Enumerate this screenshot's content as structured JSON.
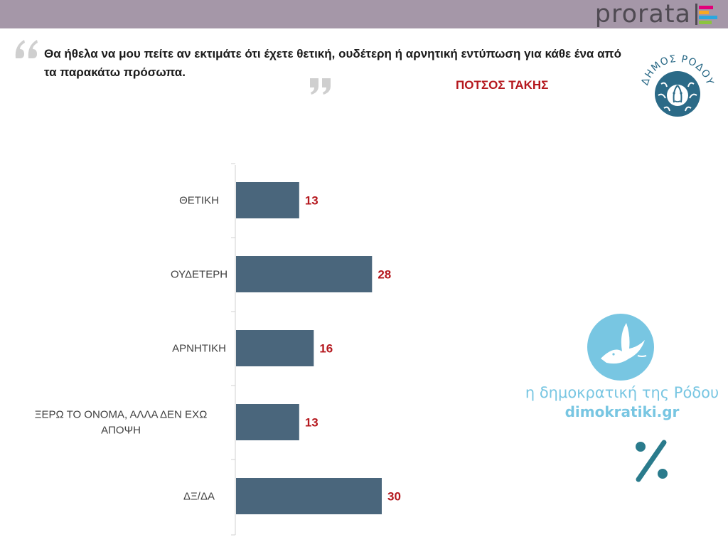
{
  "header": {
    "brand": "prorata",
    "colors": {
      "bar": "#a597a8",
      "brand_text": "#4f4a52"
    }
  },
  "question": {
    "text": "Θα ήθελα να μου πείτε αν εκτιμάτε ότι έχετε θετική, ουδέτερη ή αρνητική εντύπωση για κάθε ένα από τα παρακάτω πρόσωπα.",
    "icons": [
      "quote-open-icon",
      "quote-close-icon"
    ]
  },
  "person": "ΠΟΤΣΟΣ ΤΑΚΗΣ",
  "logo": {
    "text": "ΔΗΜΟΣ ΡΟΔΟΥ",
    "icon": "medusa-head-icon"
  },
  "watermark": {
    "line1": "η δημοκρατική της Ρόδου",
    "line2": "dimokratiki.gr",
    "icons": [
      "dove-icon",
      "percent-icon"
    ],
    "color": "#78c6e2"
  },
  "chart_data": {
    "type": "bar",
    "orientation": "horizontal",
    "categories": [
      "ΘΕΤΙΚΗ",
      "ΟΥΔΕΤΕΡΗ",
      "ΑΡΝΗΤΙΚΗ",
      "ΞΕΡΩ ΤΟ ΟΝΟΜΑ, ΑΛΛΑ ΔΕΝ ΕΧΩ ΑΠΟΨΗ",
      "ΔΞ/ΔΑ"
    ],
    "values": [
      13,
      28,
      16,
      13,
      30
    ],
    "xlim": [
      0,
      100
    ],
    "grid": false,
    "legend": "none",
    "colors": {
      "bar": "#4a667c",
      "value_label": "#b5181e",
      "category_label": "#404040",
      "axis": "#d0d0d0"
    }
  }
}
